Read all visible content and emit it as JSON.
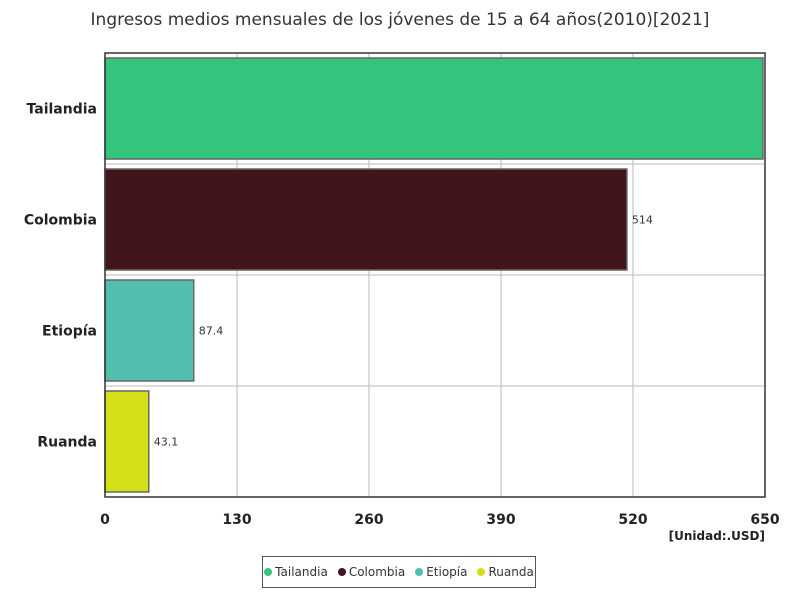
{
  "chart_data": {
    "type": "bar",
    "orientation": "horizontal",
    "title": "Ingresos medios mensuales de los jóvenes de 15 a 64 años(2010)[2021]",
    "unit": "[Unidad:.USD]",
    "categories": [
      "Tailandia",
      "Colombia",
      "Etiopía",
      "Ruanda"
    ],
    "values": [
      648,
      514,
      87.4,
      43.1
    ],
    "value_labels": [
      "",
      "514",
      "87.4",
      "43.1"
    ],
    "colors": [
      "#34c47e",
      "#42151d",
      "#52bead",
      "#d4e017"
    ],
    "xlim": [
      0,
      650
    ],
    "xticks": [
      "0",
      "130",
      "260",
      "390",
      "520",
      "650"
    ],
    "grid": true,
    "legend_position": "bottom-center",
    "legend": [
      "Tailandia",
      "Colombia",
      "Etiopía",
      "Ruanda"
    ]
  }
}
